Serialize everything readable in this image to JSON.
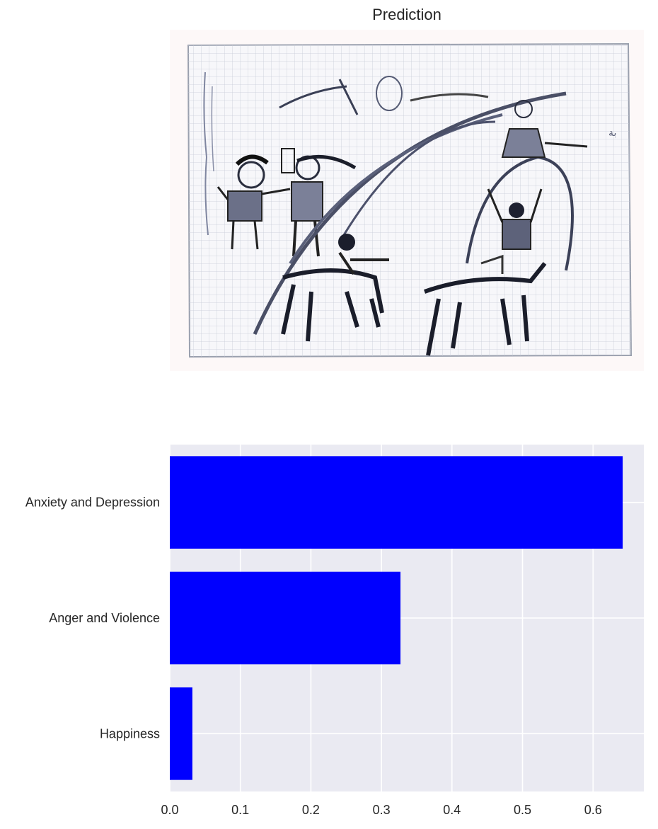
{
  "figure": {
    "title": "Prediction"
  },
  "image_panel": {
    "description_icon": "child-drawing-image"
  },
  "chart_data": {
    "type": "bar",
    "orientation": "horizontal",
    "categories": [
      "Anxiety and Depression",
      "Anger and Violence",
      "Happiness"
    ],
    "values": [
      0.642,
      0.327,
      0.032
    ],
    "xlim": [
      0,
      0.672
    ],
    "xticks": [
      0.0,
      0.1,
      0.2,
      0.3,
      0.4,
      0.5,
      0.6
    ],
    "xtick_labels": [
      "0.0",
      "0.1",
      "0.2",
      "0.3",
      "0.4",
      "0.5",
      "0.6"
    ],
    "grid": true,
    "bar_color": "#0000ff",
    "axes_background": "#eaeaf2",
    "title": "",
    "xlabel": "",
    "ylabel": ""
  }
}
